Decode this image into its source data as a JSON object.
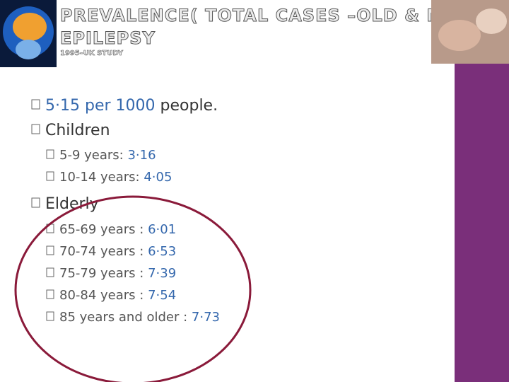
{
  "header": {
    "title": [
      "PREVALENCE( TOTAL CASES –OLD & NEW CASES",
      "EPILEPSY"
    ],
    "subtitle": "1995–UK STUDY"
  },
  "body": {
    "rate": {
      "value": "5·15 per 1000",
      "unit": "people."
    },
    "children": {
      "heading": "Children",
      "items": [
        {
          "label": "5-9 years:",
          "value": "3·16"
        },
        {
          "label": "10-14 years:",
          "value": "4·05"
        }
      ]
    },
    "elderly": {
      "heading": "Elderly",
      "items": [
        {
          "label": "65-69 years :",
          "value": "6·01"
        },
        {
          "label": "70-74 years :",
          "value": "6·53"
        },
        {
          "label": "75-79 years :",
          "value": "7·39"
        },
        {
          "label": "80-84 years :",
          "value": "7·54"
        },
        {
          "label": "85 years and older :",
          "value": "7·73"
        }
      ]
    }
  }
}
